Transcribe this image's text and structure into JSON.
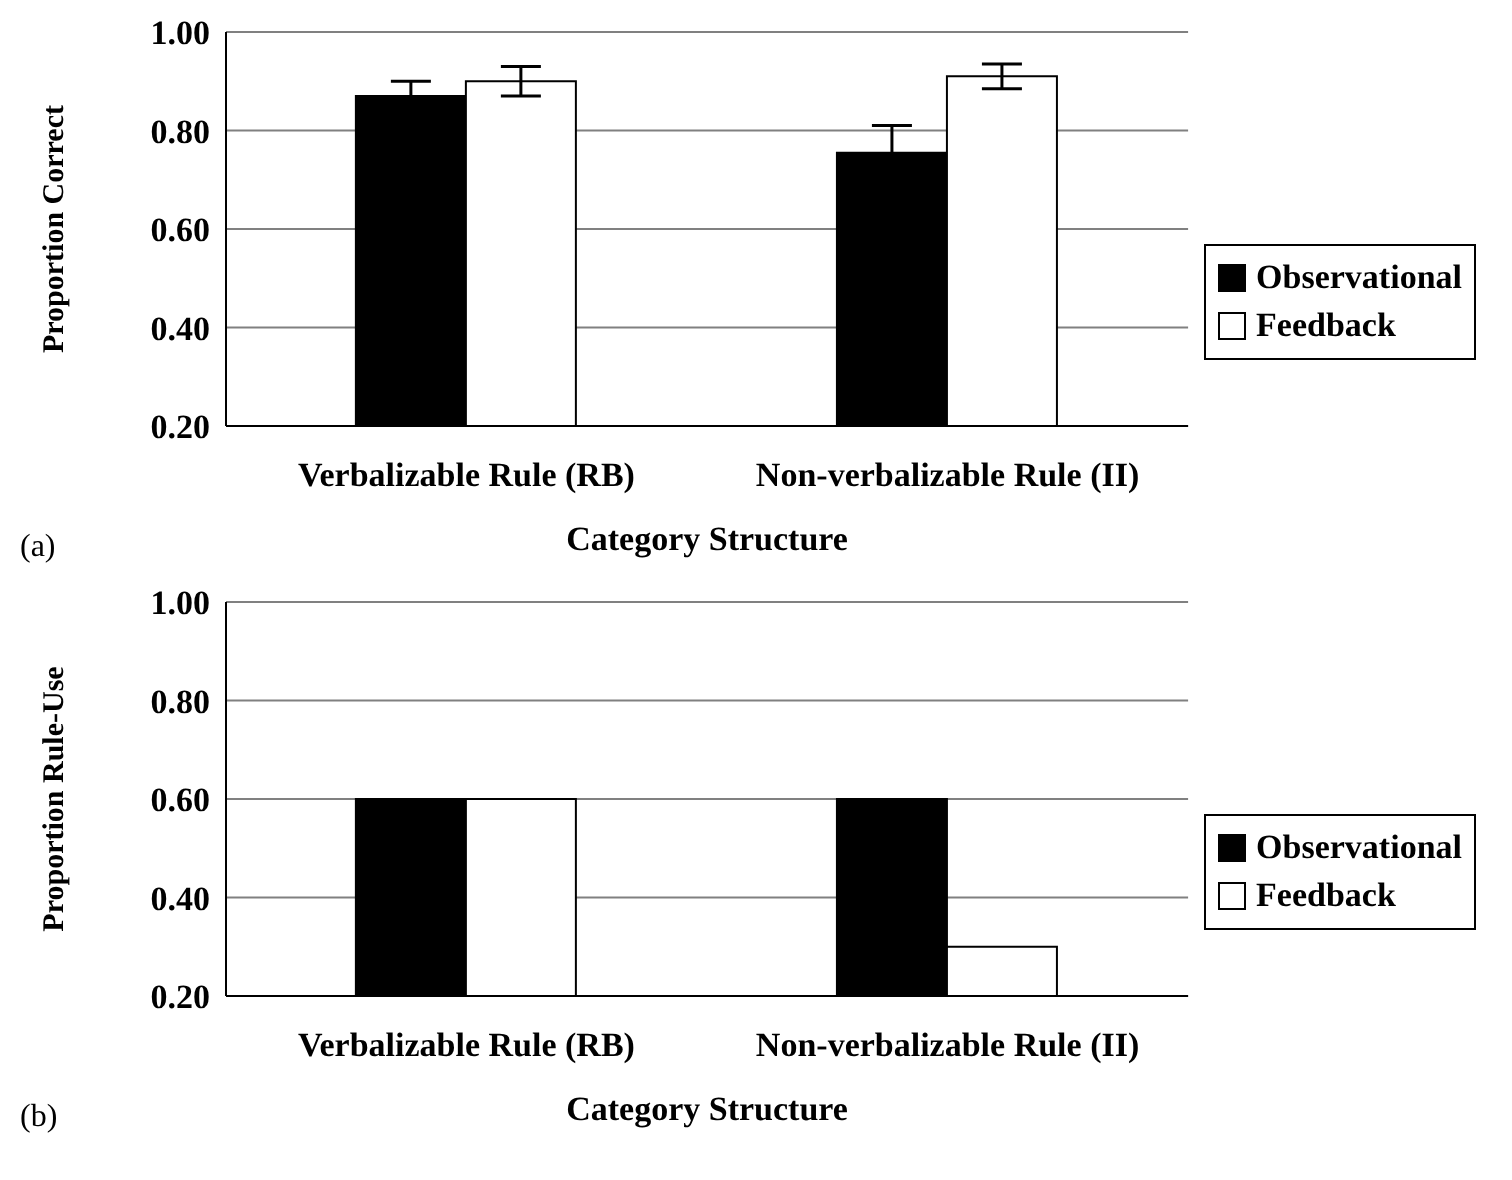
{
  "chart_data": [
    {
      "type": "bar",
      "categories": [
        "Verbalizable Rule (RB)",
        "Non-verbalizable Rule (II)"
      ],
      "xlabel": "Category Structure",
      "ylabel": "Proportion Correct",
      "annotations": [
        "(a)"
      ],
      "series": [
        {
          "name": "Observational",
          "color": "#000000",
          "values": [
            0.87,
            0.755
          ],
          "errors": [
            0.03,
            0.055
          ]
        },
        {
          "name": "Feedback",
          "color": "#ffffff",
          "values": [
            0.9,
            0.91
          ],
          "errors": [
            0.03,
            0.025
          ]
        }
      ],
      "ylim": [
        0.2,
        1.0
      ],
      "yticks": [
        {
          "value": 0.2,
          "label": "0.20"
        },
        {
          "value": 0.4,
          "label": "0.40"
        },
        {
          "value": 0.6,
          "label": "0.60"
        },
        {
          "value": 0.8,
          "label": "0.80"
        },
        {
          "value": 1.0,
          "label": "1.00"
        }
      ],
      "grid": "y",
      "legend": "right"
    },
    {
      "type": "bar",
      "categories": [
        "Verbalizable Rule (RB)",
        "Non-verbalizable Rule (II)"
      ],
      "xlabel": "Category Structure",
      "ylabel": "Proportion Rule-Use",
      "annotations": [
        "(b)"
      ],
      "series": [
        {
          "name": "Observational",
          "color": "#000000",
          "values": [
            0.6,
            0.6
          ]
        },
        {
          "name": "Feedback",
          "color": "#ffffff",
          "values": [
            0.6,
            0.3
          ]
        }
      ],
      "ylim": [
        0.2,
        1.0
      ],
      "yticks": [
        {
          "value": 0.2,
          "label": "0.20"
        },
        {
          "value": 0.4,
          "label": "0.40"
        },
        {
          "value": 0.6,
          "label": "0.60"
        },
        {
          "value": 0.8,
          "label": "0.80"
        },
        {
          "value": 1.0,
          "label": "1.00"
        }
      ],
      "grid": "y",
      "legend": "right"
    }
  ]
}
